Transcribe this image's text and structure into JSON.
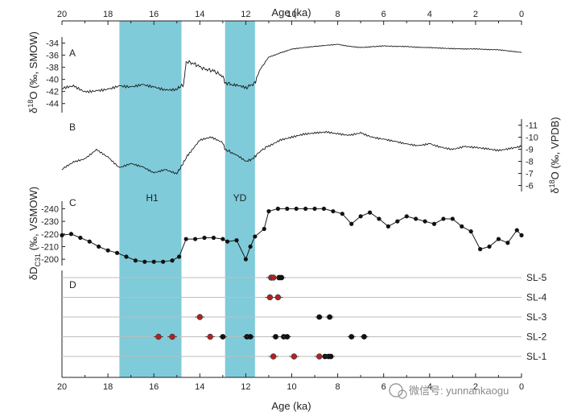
{
  "chart_data": {
    "type": "line",
    "xlabel": "Age (ka)",
    "xlim": [
      20,
      0
    ],
    "x_ticks": [
      "20",
      "18",
      "16",
      "14",
      "12",
      "10",
      "8",
      "6",
      "4",
      "2",
      "0"
    ],
    "shaded_intervals": [
      {
        "label": "H1",
        "from": 17.5,
        "to": 14.8,
        "color": "#7fcbd9"
      },
      {
        "label": "YD",
        "from": 12.9,
        "to": 11.6,
        "color": "#7fcbd9"
      }
    ],
    "panels": [
      {
        "label": "A",
        "ylabel_main": "δ",
        "ylabel_sup": "18",
        "ylabel_tail": "O (‰, SMOW)",
        "yticks": [
          "-34",
          "-36",
          "-38",
          "-40",
          "-42",
          "-44"
        ],
        "ylim": [
          -45.5,
          -33
        ],
        "axis_side": "left",
        "series": [
          {
            "x": [
              20,
              19.5,
              19,
              18.5,
              18,
              17.5,
              17,
              16.5,
              16,
              15.5,
              15,
              14.7,
              14.6,
              14.2,
              13.8,
              13.4,
              13.0,
              12.9,
              12.5,
              12.0,
              11.6,
              11.4,
              11.0,
              10.5,
              10.0,
              9.5,
              9.0,
              8.5,
              8.0,
              7.5,
              7.0,
              6.5,
              6.0,
              5.5,
              5.0,
              4.5,
              4.0,
              3.5,
              3.0,
              2.5,
              2.0,
              1.5,
              1.0,
              0.5,
              0
            ],
            "y": [
              -41.6,
              -41.2,
              -42.1,
              -41.8,
              -41.5,
              -41.0,
              -41.3,
              -41.0,
              -41.4,
              -41.8,
              -41.6,
              -40.8,
              -37.0,
              -37.5,
              -38.3,
              -38.6,
              -39.5,
              -40.5,
              -41.0,
              -41.4,
              -40.6,
              -38.5,
              -36.3,
              -35.6,
              -35.0,
              -34.8,
              -34.6,
              -34.4,
              -34.2,
              -34.5,
              -34.7,
              -34.6,
              -34.5,
              -34.6,
              -34.6,
              -34.7,
              -34.7,
              -34.8,
              -34.9,
              -35.0,
              -35.0,
              -35.1,
              -35.1,
              -35.3,
              -35.5
            ]
          }
        ]
      },
      {
        "label": "B",
        "ylabel_main": "δ",
        "ylabel_sup": "18",
        "ylabel_tail": "O (‰, VPDB)",
        "yticks": [
          "-11",
          "-10",
          "-9",
          "-8",
          "-7",
          "-6"
        ],
        "ylim": [
          -5.5,
          -11.5
        ],
        "axis_side": "right",
        "series": [
          {
            "x": [
              20,
              19.5,
              19,
              18.5,
              18,
              17.5,
              17,
              16.5,
              16,
              15.5,
              15,
              14.8,
              14.5,
              14.0,
              13.5,
              13.0,
              12.9,
              12.5,
              12.0,
              11.7,
              11.4,
              11.0,
              10.5,
              10.0,
              9.5,
              9.0,
              8.5,
              8.0,
              7.5,
              7.0,
              6.5,
              6.0,
              5.5,
              5.0,
              4.5,
              4.0,
              3.5,
              3.0,
              2.5,
              2.0,
              1.5,
              1.0,
              0.5,
              0
            ],
            "y": [
              -7.3,
              -7.9,
              -8.2,
              -9.0,
              -8.4,
              -7.5,
              -7.8,
              -7.5,
              -7.0,
              -7.3,
              -7.0,
              -7.6,
              -8.6,
              -9.8,
              -10.0,
              -9.5,
              -9.0,
              -8.6,
              -8.0,
              -8.2,
              -8.8,
              -9.3,
              -9.8,
              -10.0,
              -10.2,
              -10.3,
              -10.4,
              -10.3,
              -10.2,
              -10.4,
              -10.0,
              -9.8,
              -9.6,
              -9.4,
              -9.3,
              -9.5,
              -9.2,
              -9.0,
              -9.2,
              -9.1,
              -9.0,
              -8.9,
              -9.1,
              -9.3
            ]
          }
        ]
      },
      {
        "label": "C",
        "ylabel_main": "δD",
        "ylabel_sub": "C31",
        "ylabel_tail": " (‰, VSMOW)",
        "yticks": [
          "-240",
          "-230",
          "-220",
          "-210",
          "-200"
        ],
        "ylim": [
          -195,
          -246
        ],
        "axis_side": "left",
        "series": [
          {
            "x": [
              20,
              19.6,
              19.2,
              18.8,
              18.4,
              18.0,
              17.6,
              17.2,
              16.8,
              16.4,
              16.0,
              15.6,
              15.2,
              14.9,
              14.6,
              14.2,
              13.8,
              13.4,
              13.0,
              12.8,
              12.4,
              12.0,
              11.8,
              11.6,
              11.2,
              11.0,
              10.6,
              10.2,
              9.8,
              9.4,
              9.0,
              8.6,
              8.2,
              7.8,
              7.4,
              7.0,
              6.6,
              6.2,
              5.8,
              5.4,
              5.0,
              4.6,
              4.2,
              3.8,
              3.4,
              3.0,
              2.6,
              2.2,
              1.8,
              1.4,
              1.0,
              0.6,
              0.2,
              0
            ],
            "y": [
              -219,
              -220,
              -217,
              -214,
              -210,
              -207,
              -205,
              -202,
              -199,
              -198,
              -198,
              -198,
              -199,
              -202,
              -216,
              -216,
              -217,
              -217,
              -216,
              -214,
              -215,
              -200,
              -210,
              -218,
              -224,
              -238,
              -240,
              -240,
              -240,
              -240,
              -240,
              -240,
              -238,
              -236,
              -228,
              -234,
              -237,
              -232,
              -226,
              -230,
              -234,
              -232,
              -230,
              -228,
              -232,
              -232,
              -226,
              -222,
              -208,
              -210,
              -216,
              -213,
              -223,
              -219
            ]
          }
        ]
      }
    ],
    "panel_d": {
      "label": "D",
      "sites": [
        {
          "name": "SL-5",
          "red": [
            10.9,
            10.8
          ],
          "black": [
            10.55,
            10.45
          ]
        },
        {
          "name": "SL-4",
          "red": [
            10.95,
            10.6
          ],
          "black": []
        },
        {
          "name": "SL-3",
          "red": [
            14.0
          ],
          "black": [
            8.8,
            8.35
          ]
        },
        {
          "name": "SL-2",
          "red": [
            15.8,
            15.2,
            13.55
          ],
          "black": [
            13.0,
            11.95,
            11.8,
            10.7,
            10.35,
            10.2,
            7.4,
            6.85
          ]
        },
        {
          "name": "SL-1",
          "red": [
            10.8,
            9.9,
            8.8
          ],
          "black": [
            8.55,
            8.4,
            8.3
          ]
        }
      ],
      "red_color": "#b22222",
      "black_color": "#111111"
    }
  },
  "watermark": "微信号: yunnankaogu"
}
